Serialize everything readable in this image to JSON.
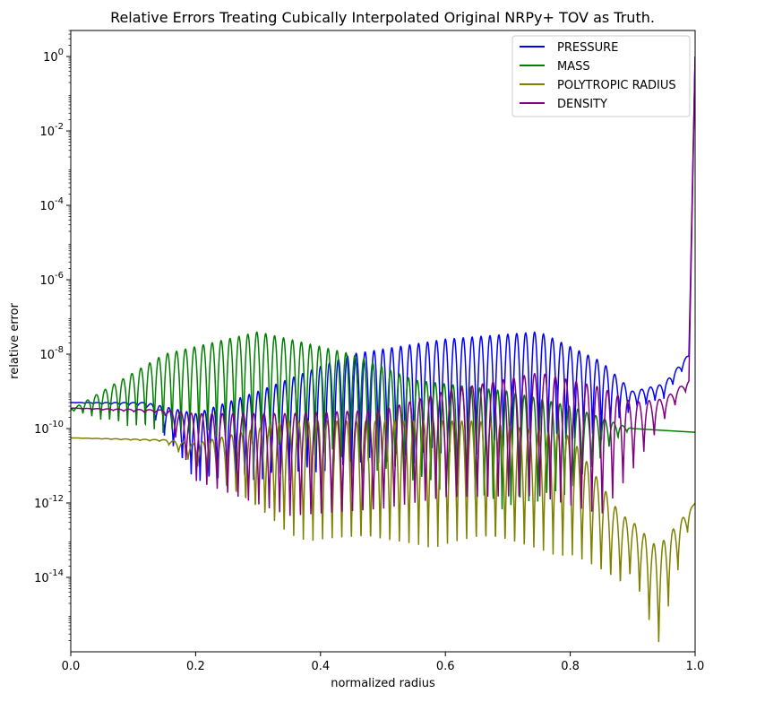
{
  "chart_data": {
    "type": "line",
    "title": "Relative Errors Treating Cubically Interpolated Original NRPy+ TOV as Truth.",
    "xlabel": "normalized radius",
    "ylabel": "relative error",
    "xlim": [
      0.0,
      1.0
    ],
    "ylim_log10": [
      -16.0,
      0.7
    ],
    "yscale": "log",
    "grid": false,
    "legend_position": "top-right",
    "x_ticks": [
      0.0,
      0.2,
      0.4,
      0.6,
      0.8,
      1.0
    ],
    "x_tick_labels": [
      "0.0",
      "0.2",
      "0.4",
      "0.6",
      "0.8",
      "1.0"
    ],
    "y_tick_exponents": [
      0,
      -2,
      -4,
      -6,
      -8,
      -10,
      -12,
      -14
    ],
    "y_tick_labels": [
      "10^0",
      "10^-2",
      "10^-4",
      "10^-6",
      "10^-8",
      "10^-10",
      "10^-12",
      "10^-14"
    ],
    "series": [
      {
        "name": "PRESSURE",
        "color": "#0000ff",
        "oscillations": 70,
        "envelope_x": [
          0.0,
          0.12,
          0.2,
          0.3,
          0.45,
          0.6,
          0.75,
          0.85,
          0.9,
          0.95,
          0.99,
          1.0
        ],
        "upper_log10": [
          -9.3,
          -9.3,
          -9.6,
          -9.0,
          -8.0,
          -7.6,
          -7.4,
          -8.2,
          -9.0,
          -8.8,
          -8.0,
          0.0
        ],
        "lower_log10": [
          -9.3,
          -9.4,
          -11.5,
          -11.5,
          -11.2,
          -10.8,
          -10.5,
          -10.3,
          -9.5,
          -9.2,
          -8.2,
          0.0
        ]
      },
      {
        "name": "MASS",
        "color": "#008000",
        "oscillations": 70,
        "envelope_x": [
          0.0,
          0.05,
          0.15,
          0.3,
          0.45,
          0.55,
          0.7,
          0.8,
          0.88,
          0.9,
          1.0
        ],
        "upper_log10": [
          -9.5,
          -9.0,
          -8.0,
          -7.4,
          -8.0,
          -8.7,
          -9.0,
          -9.4,
          -9.9,
          -10.0,
          -10.1
        ],
        "lower_log10": [
          -9.5,
          -9.8,
          -10.2,
          -10.5,
          -11.0,
          -11.5,
          -12.3,
          -11.8,
          -10.2,
          -10.0,
          -10.1
        ]
      },
      {
        "name": "POLYTROPIC RADIUS",
        "color": "#808000",
        "oscillations": 65,
        "envelope_x": [
          0.0,
          0.15,
          0.2,
          0.35,
          0.5,
          0.65,
          0.8,
          0.88,
          0.9,
          0.94,
          1.0
        ],
        "upper_log10": [
          -10.25,
          -10.3,
          -10.4,
          -9.8,
          -9.8,
          -9.8,
          -10.2,
          -12.3,
          -12.5,
          -13.2,
          -12.0
        ],
        "lower_log10": [
          -10.25,
          -10.35,
          -11.0,
          -13.0,
          -13.3,
          -13.2,
          -13.5,
          -14.3,
          -14.0,
          -16.0,
          -12.0
        ]
      },
      {
        "name": "DENSITY",
        "color": "#800080",
        "oscillations": 60,
        "envelope_x": [
          0.0,
          0.15,
          0.2,
          0.35,
          0.5,
          0.6,
          0.75,
          0.85,
          0.9,
          0.95,
          0.99,
          1.0
        ],
        "upper_log10": [
          -9.45,
          -9.5,
          -9.6,
          -9.6,
          -9.5,
          -9.0,
          -8.5,
          -8.9,
          -9.3,
          -9.2,
          -8.7,
          0.0
        ],
        "lower_log10": [
          -9.45,
          -9.6,
          -11.5,
          -12.5,
          -12.3,
          -12.0,
          -12.0,
          -12.5,
          -11.2,
          -9.8,
          -8.9,
          0.0
        ]
      }
    ]
  }
}
